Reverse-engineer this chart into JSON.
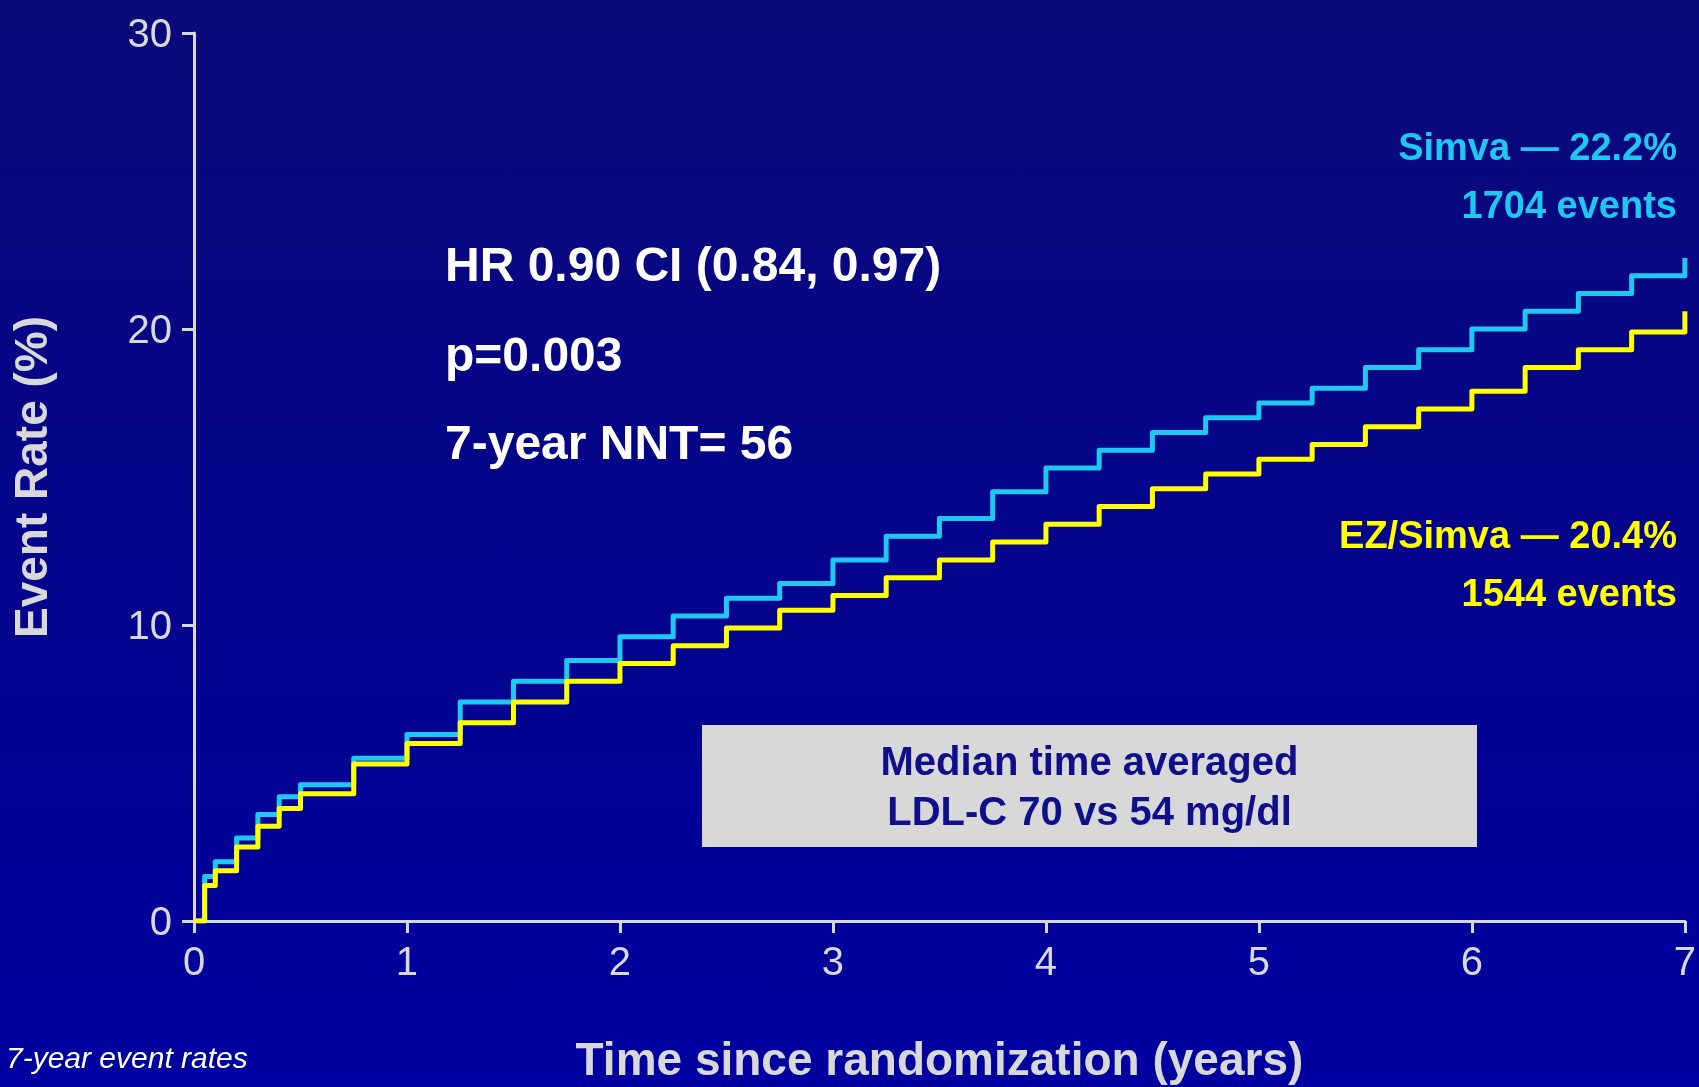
{
  "chart_data": {
    "type": "step",
    "xlabel": "Time since randomization (years)",
    "ylabel": "Event Rate (%)",
    "x": [
      0,
      0.05,
      0.1,
      0.2,
      0.3,
      0.4,
      0.5,
      0.75,
      1,
      1.25,
      1.5,
      1.75,
      2,
      2.25,
      2.5,
      2.75,
      3,
      3.25,
      3.5,
      3.75,
      4,
      4.25,
      4.5,
      4.75,
      5,
      5.25,
      5.5,
      5.75,
      6,
      6.25,
      6.5,
      6.75,
      7
    ],
    "series": [
      {
        "name": "Simva — 22.2%",
        "color": "#1ec8f0",
        "values": [
          0,
          1.5,
          2.0,
          2.8,
          3.6,
          4.2,
          4.6,
          5.5,
          6.3,
          7.4,
          8.1,
          8.8,
          9.6,
          10.3,
          10.9,
          11.4,
          12.2,
          13.0,
          13.6,
          14.5,
          15.3,
          15.9,
          16.5,
          17.0,
          17.5,
          18.0,
          18.7,
          19.3,
          20.0,
          20.6,
          21.2,
          21.8,
          22.4
        ]
      },
      {
        "name": "EZ/Simva — 20.4%",
        "color": "#ffff00",
        "values": [
          0,
          1.2,
          1.7,
          2.5,
          3.2,
          3.8,
          4.3,
          5.3,
          6.0,
          6.7,
          7.4,
          8.1,
          8.7,
          9.3,
          9.9,
          10.5,
          11.0,
          11.6,
          12.2,
          12.8,
          13.4,
          14.0,
          14.6,
          15.1,
          15.6,
          16.1,
          16.7,
          17.3,
          17.9,
          18.7,
          19.3,
          19.9,
          20.6
        ]
      }
    ],
    "xlim": [
      0,
      7
    ],
    "xticks": [
      0,
      1,
      2,
      3,
      4,
      5,
      6,
      7
    ],
    "ylim": [
      0,
      30
    ],
    "yticks": [
      0,
      10,
      20,
      30
    ],
    "grid": false,
    "legend": false,
    "marker": "none",
    "line_style": "solid",
    "annotations": [
      "HR 0.90 CI (0.84, 0.97)",
      "p=0.003",
      "7-year NNT= 56",
      "Median time averaged\nLDL-C 70 vs 54 mg/dl",
      "7-year event rates",
      "1704 events",
      "1544 events"
    ]
  }
}
